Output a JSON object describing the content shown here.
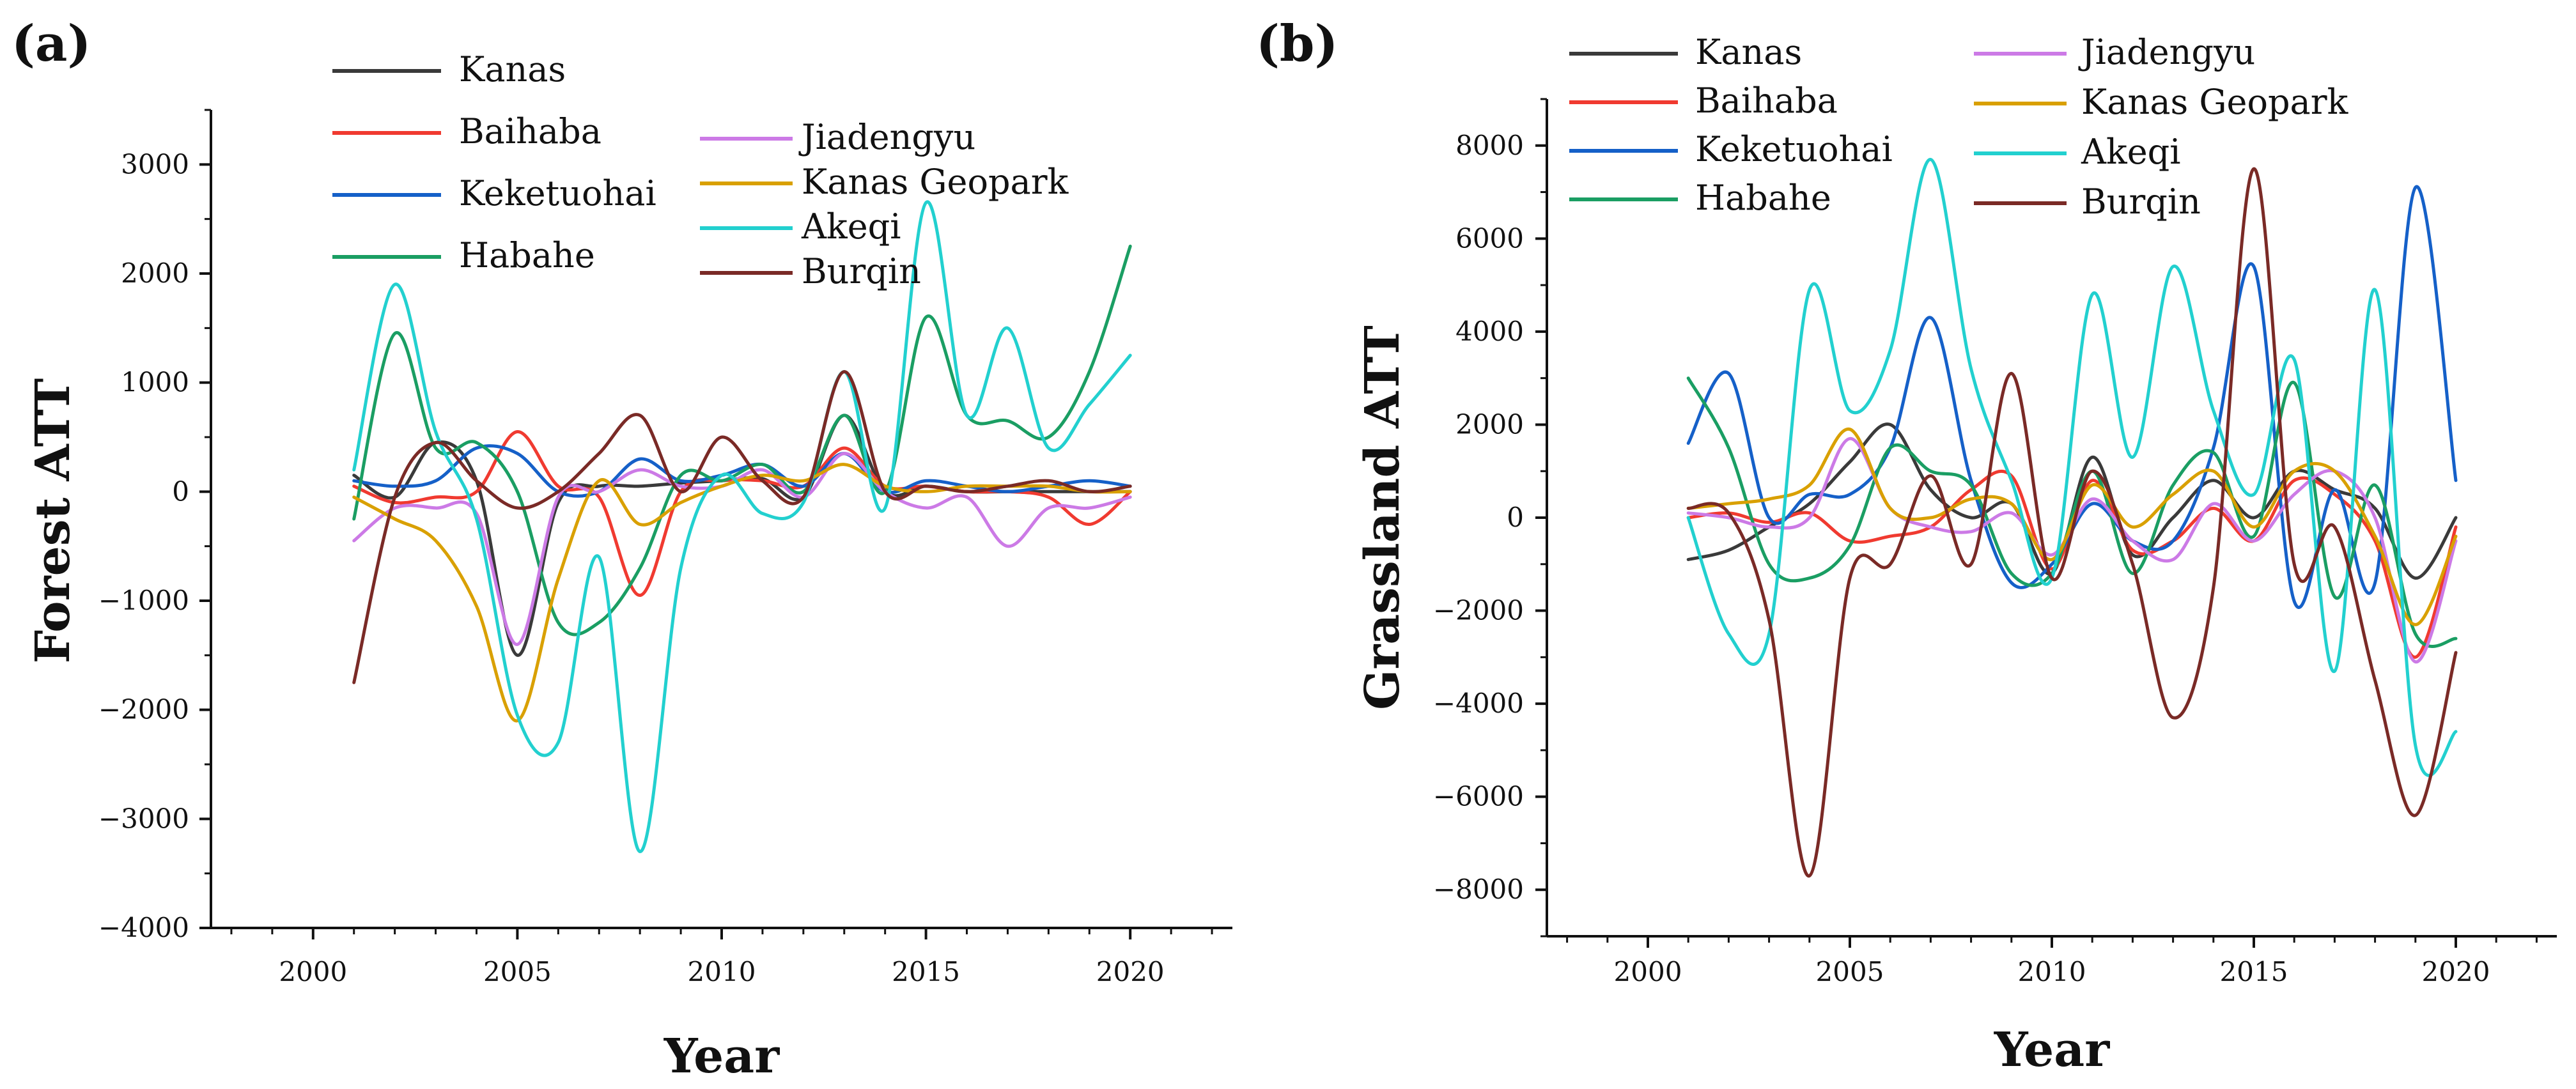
{
  "figure": {
    "panels": [
      "(a)",
      "(b)"
    ]
  },
  "colors": {
    "Kanas": "#3a3a3a",
    "Baihaba": "#f03a30",
    "Keketuohai": "#1560c8",
    "Habahe": "#1a9e63",
    "Jiadengyu": "#cc7ae6",
    "Kanas Geopark": "#d9a000",
    "Akeqi": "#22d0cf",
    "Burqin": "#7a2a26"
  },
  "chart_data": [
    {
      "panel": "(a)",
      "type": "line",
      "title": "",
      "xlabel": "Year",
      "ylabel": "Forest ATT",
      "xlim": [
        1997.5,
        2022.5
      ],
      "ylim": [
        -4000,
        3500
      ],
      "xticks": [
        2000,
        2005,
        2010,
        2015,
        2020
      ],
      "xtick_labels": [
        "2000",
        "2005",
        "2010",
        "2015",
        "2020"
      ],
      "yticks": [
        -4000,
        -3000,
        -2000,
        -1000,
        0,
        1000,
        2000,
        3000
      ],
      "ytick_labels": [
        "−4000",
        "−3000",
        "−2000",
        "−1000",
        "0",
        "1000",
        "2000",
        "3000"
      ],
      "grid": false,
      "legend": [
        "Kanas",
        "Baihaba",
        "Keketuohai",
        "Habahe",
        "Jiadengyu",
        "Kanas Geopark",
        "Akeqi",
        "Burqin"
      ],
      "legend_position": "top-left",
      "x": [
        2001,
        2002,
        2003,
        2004,
        2005,
        2006,
        2007,
        2008,
        2009,
        2010,
        2011,
        2012,
        2013,
        2014,
        2015,
        2016,
        2017,
        2018,
        2019,
        2020
      ],
      "series": [
        {
          "name": "Kanas",
          "values": [
            150,
            -50,
            450,
            100,
            -1500,
            -100,
            50,
            50,
            80,
            100,
            120,
            -50,
            700,
            0,
            50,
            0,
            0,
            0,
            0,
            0
          ]
        },
        {
          "name": "Baihaba",
          "values": [
            50,
            -100,
            -50,
            0,
            550,
            50,
            -50,
            -950,
            0,
            100,
            100,
            50,
            400,
            50,
            50,
            0,
            0,
            -50,
            -300,
            0
          ]
        },
        {
          "name": "Keketuohai",
          "values": [
            100,
            50,
            100,
            400,
            350,
            0,
            0,
            300,
            100,
            150,
            250,
            50,
            350,
            0,
            100,
            50,
            0,
            50,
            100,
            50
          ]
        },
        {
          "name": "Habahe",
          "values": [
            -250,
            1450,
            400,
            450,
            0,
            -1200,
            -1200,
            -700,
            150,
            100,
            250,
            0,
            700,
            0,
            1600,
            700,
            650,
            500,
            1100,
            2250
          ]
        },
        {
          "name": "Jiadengyu",
          "values": [
            -450,
            -150,
            -150,
            -200,
            -1400,
            -50,
            0,
            200,
            50,
            50,
            200,
            -50,
            350,
            0,
            -150,
            -50,
            -500,
            -150,
            -150,
            -50
          ]
        },
        {
          "name": "Kanas Geopark",
          "values": [
            -50,
            -250,
            -450,
            -1050,
            -2100,
            -800,
            100,
            -300,
            -100,
            50,
            150,
            100,
            250,
            50,
            0,
            50,
            50,
            50,
            0,
            0
          ]
        },
        {
          "name": "Akeqi",
          "values": [
            200,
            1900,
            550,
            -250,
            -2050,
            -2300,
            -600,
            -3300,
            -700,
            150,
            -200,
            -100,
            1100,
            -150,
            2650,
            700,
            1500,
            400,
            800,
            1250
          ]
        },
        {
          "name": "Burqin",
          "values": [
            -1750,
            -50,
            450,
            100,
            -150,
            0,
            350,
            700,
            0,
            500,
            100,
            -50,
            1100,
            0,
            50,
            0,
            50,
            100,
            0,
            50
          ]
        }
      ]
    },
    {
      "panel": "(b)",
      "type": "line",
      "title": "",
      "xlabel": "Year",
      "ylabel": "Grassland ATT",
      "xlim": [
        1997.5,
        2022.5
      ],
      "ylim": [
        -9000,
        9000
      ],
      "xticks": [
        2000,
        2005,
        2010,
        2015,
        2020
      ],
      "xtick_labels": [
        "2000",
        "2005",
        "2010",
        "2015",
        "2020"
      ],
      "yticks": [
        -8000,
        -6000,
        -4000,
        -2000,
        0,
        2000,
        4000,
        6000,
        8000
      ],
      "ytick_labels": [
        "−8000",
        "−6000",
        "−4000",
        "−2000",
        "0",
        "2000",
        "4000",
        "6000",
        "8000"
      ],
      "grid": false,
      "legend": [
        "Kanas",
        "Baihaba",
        "Keketuohai",
        "Habahe",
        "Jiadengyu",
        "Kanas Geopark",
        "Akeqi",
        "Burqin"
      ],
      "legend_position": "top-left",
      "x": [
        2001,
        2002,
        2003,
        2004,
        2005,
        2006,
        2007,
        2008,
        2009,
        2010,
        2011,
        2012,
        2013,
        2014,
        2015,
        2016,
        2017,
        2018,
        2019,
        2020
      ],
      "series": [
        {
          "name": "Kanas",
          "values": [
            -900,
            -700,
            -200,
            300,
            1200,
            2000,
            600,
            0,
            300,
            -1200,
            1300,
            -800,
            0,
            800,
            0,
            1000,
            600,
            200,
            -1300,
            0
          ]
        },
        {
          "name": "Baihaba",
          "values": [
            0,
            100,
            -100,
            100,
            -500,
            -400,
            -200,
            600,
            900,
            -1100,
            800,
            -700,
            -500,
            200,
            -500,
            800,
            500,
            -500,
            -3000,
            -200
          ]
        },
        {
          "name": "Keketuohai",
          "values": [
            1600,
            3100,
            0,
            500,
            500,
            1500,
            4300,
            800,
            -1400,
            -1000,
            300,
            -500,
            -500,
            1500,
            5400,
            -1800,
            600,
            -1400,
            7100,
            800
          ]
        },
        {
          "name": "Habahe",
          "values": [
            3000,
            1500,
            -1000,
            -1300,
            -600,
            1500,
            1000,
            700,
            -1200,
            -1200,
            1000,
            -1200,
            700,
            1400,
            -400,
            2900,
            -1700,
            700,
            -2500,
            -2600
          ]
        },
        {
          "name": "Jiadengyu",
          "values": [
            100,
            0,
            -200,
            0,
            1700,
            200,
            -200,
            -300,
            100,
            -800,
            400,
            -500,
            -900,
            300,
            -500,
            500,
            1000,
            0,
            -3100,
            -500
          ]
        },
        {
          "name": "Kanas Geopark",
          "values": [
            200,
            300,
            400,
            700,
            1900,
            200,
            0,
            400,
            300,
            -900,
            700,
            -200,
            500,
            1000,
            -200,
            1000,
            1000,
            -400,
            -2300,
            -400
          ]
        },
        {
          "name": "Akeqi",
          "values": [
            0,
            -2500,
            -2500,
            4900,
            2300,
            3600,
            7700,
            3200,
            800,
            -1300,
            4800,
            1300,
            5400,
            2300,
            500,
            3400,
            -3300,
            4900,
            -4900,
            -4600
          ]
        },
        {
          "name": "Burqin",
          "values": [
            200,
            100,
            -2200,
            -7700,
            -1300,
            -1000,
            900,
            -1000,
            3100,
            -1300,
            1000,
            -1000,
            -4300,
            -1500,
            7500,
            -1000,
            -200,
            -3500,
            -6400,
            -2900
          ]
        }
      ]
    }
  ]
}
